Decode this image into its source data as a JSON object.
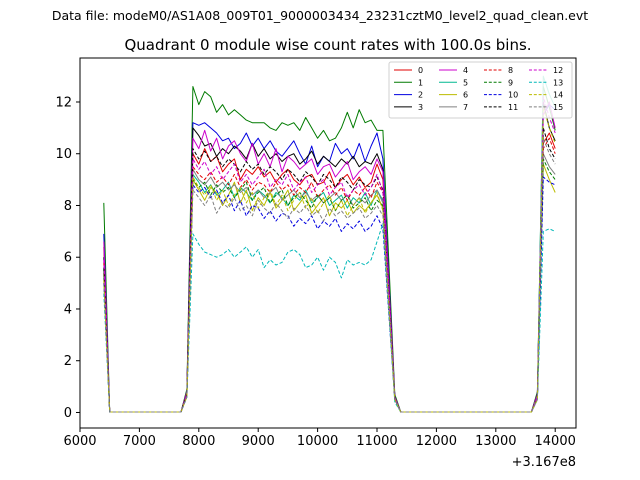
{
  "figure": {
    "suptitle": "Data file: modeM0/AS1A08_009T01_9000003434_23231cztM0_level2_quad_clean.evt"
  },
  "chart_data": {
    "type": "line",
    "title": "Quadrant 0 module wise count rates with 100.0s bins.",
    "xlabel": "",
    "ylabel": "",
    "x_offset_label": "+3.167e8",
    "xlim": [
      6000,
      14350
    ],
    "ylim": [
      -0.6,
      13.7
    ],
    "xticks": [
      6000,
      7000,
      8000,
      9000,
      10000,
      11000,
      12000,
      13000,
      14000
    ],
    "yticks": [
      0,
      2,
      4,
      6,
      8,
      10,
      12
    ],
    "grid": false,
    "legend_position": "top-right",
    "legend_columns": 4,
    "gaps": [
      {
        "x": [
          6500,
          6600,
          6700,
          6800,
          6900,
          7000,
          7100,
          7200,
          7300,
          7400,
          7500,
          7600,
          7700
        ],
        "value": 0.02
      },
      {
        "x": [
          11400,
          11500,
          11600,
          11700,
          11800,
          11900,
          12000,
          12100,
          12200,
          12300,
          12400,
          12500,
          12600,
          12700,
          12800,
          12900,
          13000,
          13100,
          13200,
          13300,
          13400,
          13500,
          13600
        ],
        "value": 0.02
      }
    ],
    "active_x": [
      7900,
      8000,
      8100,
      8200,
      8300,
      8400,
      8500,
      8600,
      8700,
      8800,
      8900,
      9000,
      9100,
      9200,
      9300,
      9400,
      9500,
      9600,
      9700,
      9800,
      9900,
      10000,
      10100,
      10200,
      10300,
      10400,
      10500,
      10600,
      10700,
      10800,
      10900,
      11000,
      11100
    ],
    "end_x": [
      13800,
      13900,
      14000
    ],
    "series": [
      {
        "name": "0",
        "color": "#e00000",
        "dash": false,
        "start": 6.4,
        "ramp_in": 0.8,
        "drop": 0.6,
        "ramp_out": 0.7,
        "active": [
          10.0,
          9.6,
          10.2,
          9.7,
          9.9,
          9.3,
          9.6,
          9.8,
          9.0,
          9.4,
          9.2,
          9.5,
          9.1,
          9.3,
          8.9,
          9.2,
          9.4,
          9.0,
          8.8,
          9.1,
          9.2,
          8.8,
          8.9,
          9.3,
          8.7,
          9.0,
          9.2,
          8.8,
          9.1,
          8.7,
          8.9,
          9.6,
          9.0
        ],
        "end": [
          10.4,
          10.8,
          10.2
        ]
      },
      {
        "name": "1",
        "color": "#007a00",
        "dash": false,
        "start": 8.1,
        "ramp_in": 0.9,
        "drop": 0.7,
        "ramp_out": 0.8,
        "active": [
          12.6,
          11.9,
          12.4,
          12.2,
          11.6,
          11.9,
          11.5,
          11.7,
          11.5,
          11.3,
          11.2,
          11.2,
          11.2,
          11.0,
          10.9,
          11.2,
          11.1,
          11.2,
          10.9,
          11.4,
          11.0,
          10.6,
          10.9,
          10.5,
          10.6,
          11.0,
          11.6,
          11.0,
          11.7,
          11.2,
          11.3,
          10.9,
          10.9
        ],
        "end": [
          12.6,
          11.8,
          10.9
        ]
      },
      {
        "name": "2",
        "color": "#0000e0",
        "dash": false,
        "start": 6.9,
        "ramp_in": 0.8,
        "drop": 0.6,
        "ramp_out": 0.7,
        "active": [
          11.2,
          11.1,
          11.2,
          11.0,
          10.8,
          10.5,
          10.6,
          10.2,
          10.4,
          10.8,
          10.3,
          10.6,
          10.2,
          10.5,
          10.1,
          9.9,
          10.2,
          10.5,
          10.0,
          9.6,
          10.3,
          9.5,
          9.9,
          9.7,
          10.4,
          10.0,
          10.2,
          9.8,
          10.4,
          9.7,
          10.3,
          10.8,
          9.8
        ],
        "end": [
          11.5,
          11.9,
          11.7
        ]
      },
      {
        "name": "3",
        "color": "#000000",
        "dash": false,
        "start": 6.0,
        "ramp_in": 0.8,
        "drop": 0.6,
        "ramp_out": 0.7,
        "active": [
          11.0,
          10.7,
          10.3,
          10.4,
          9.9,
          10.2,
          10.0,
          10.3,
          10.1,
          9.8,
          10.4,
          9.9,
          10.2,
          9.8,
          10.0,
          9.7,
          9.9,
          10.0,
          9.6,
          9.8,
          10.1,
          9.6,
          9.9,
          9.7,
          9.5,
          9.8,
          9.6,
          9.9,
          9.5,
          9.7,
          9.6,
          10.0,
          9.4
        ],
        "end": [
          12.0,
          11.0,
          10.5
        ]
      },
      {
        "name": "4",
        "color": "#cc00cc",
        "dash": false,
        "start": 6.6,
        "ramp_in": 0.8,
        "drop": 0.6,
        "ramp_out": 0.7,
        "active": [
          10.6,
          10.2,
          10.9,
          10.1,
          10.6,
          9.8,
          10.3,
          10.5,
          10.0,
          9.7,
          10.4,
          9.6,
          10.0,
          9.5,
          10.2,
          9.3,
          9.9,
          9.7,
          9.4,
          9.6,
          9.8,
          9.2,
          9.5,
          9.6,
          9.1,
          9.4,
          9.7,
          9.0,
          9.3,
          9.5,
          9.2,
          9.8,
          9.3
        ],
        "end": [
          11.5,
          12.0,
          11.0
        ]
      },
      {
        "name": "5",
        "color": "#00b890",
        "dash": false,
        "start": 5.6,
        "ramp_in": 0.7,
        "drop": 0.5,
        "ramp_out": 0.6,
        "active": [
          9.2,
          8.9,
          8.5,
          8.8,
          8.4,
          8.6,
          8.9,
          8.3,
          8.7,
          8.5,
          8.2,
          8.6,
          8.4,
          8.1,
          8.5,
          8.3,
          8.0,
          8.4,
          8.2,
          8.6,
          8.1,
          8.3,
          8.5,
          8.0,
          8.2,
          8.4,
          7.9,
          8.3,
          8.1,
          8.5,
          8.0,
          8.6,
          8.2
        ],
        "end": [
          13.0,
          12.3,
          11.8
        ]
      },
      {
        "name": "6",
        "color": "#bcbc00",
        "dash": false,
        "start": 5.4,
        "ramp_in": 0.7,
        "drop": 0.5,
        "ramp_out": 0.6,
        "active": [
          9.0,
          8.6,
          8.2,
          8.7,
          8.5,
          8.0,
          8.4,
          8.9,
          8.1,
          8.6,
          7.8,
          8.3,
          8.0,
          8.5,
          7.9,
          8.2,
          8.6,
          7.8,
          8.1,
          8.4,
          7.7,
          8.0,
          8.3,
          7.6,
          8.1,
          7.9,
          8.2,
          7.7,
          8.0,
          7.8,
          8.1,
          8.4,
          7.9
        ],
        "end": [
          9.6,
          9.0,
          8.5
        ]
      },
      {
        "name": "7",
        "color": "#808080",
        "dash": false,
        "start": 5.2,
        "ramp_in": 0.7,
        "drop": 0.5,
        "ramp_out": 0.6,
        "active": [
          9.4,
          9.0,
          8.8,
          9.1,
          8.7,
          8.9,
          8.6,
          8.8,
          8.5,
          8.7,
          8.4,
          8.6,
          8.3,
          8.5,
          8.7,
          8.2,
          8.4,
          8.6,
          8.3,
          8.5,
          8.2,
          8.4,
          8.1,
          8.3,
          8.5,
          8.2,
          8.4,
          8.0,
          8.3,
          8.1,
          8.4,
          8.6,
          8.1
        ],
        "end": [
          10.0,
          9.5,
          9.2
        ]
      },
      {
        "name": "8",
        "color": "#e00000",
        "dash": true,
        "start": 5.8,
        "ramp_in": 0.7,
        "drop": 0.5,
        "ramp_out": 0.6,
        "active": [
          9.5,
          9.2,
          9.0,
          9.3,
          8.9,
          9.1,
          8.8,
          9.2,
          8.7,
          9.0,
          8.6,
          8.9,
          8.8,
          8.5,
          8.9,
          8.6,
          8.8,
          8.4,
          8.7,
          8.5,
          8.9,
          8.3,
          8.6,
          8.8,
          8.4,
          8.7,
          8.2,
          8.6,
          8.4,
          8.7,
          8.3,
          8.9,
          8.5
        ],
        "end": [
          10.2,
          10.6,
          10.0
        ]
      },
      {
        "name": "9",
        "color": "#007a00",
        "dash": true,
        "start": 5.5,
        "ramp_in": 0.7,
        "drop": 0.5,
        "ramp_out": 0.6,
        "active": [
          9.0,
          8.7,
          8.9,
          8.4,
          8.8,
          8.5,
          8.7,
          8.3,
          8.6,
          8.9,
          8.2,
          8.5,
          8.7,
          8.1,
          8.4,
          8.6,
          8.0,
          8.3,
          8.5,
          8.2,
          7.9,
          8.4,
          8.1,
          8.3,
          7.8,
          8.2,
          8.4,
          7.9,
          8.1,
          8.3,
          7.8,
          8.2,
          8.0
        ],
        "end": [
          9.8,
          9.3,
          9.0
        ]
      },
      {
        "name": "10",
        "color": "#0000e0",
        "dash": true,
        "start": 5.0,
        "ramp_in": 0.6,
        "drop": 0.5,
        "ramp_out": 0.5,
        "active": [
          8.8,
          8.5,
          8.7,
          8.3,
          8.6,
          8.1,
          8.4,
          7.8,
          8.2,
          7.6,
          8.0,
          7.9,
          7.5,
          7.8,
          7.4,
          7.7,
          7.6,
          7.2,
          7.5,
          7.3,
          7.6,
          7.1,
          7.4,
          7.2,
          7.5,
          7.0,
          7.3,
          7.1,
          7.4,
          7.0,
          7.2,
          7.6,
          7.1
        ],
        "end": [
          9.1,
          8.9,
          8.8
        ]
      },
      {
        "name": "11",
        "color": "#000000",
        "dash": true,
        "start": 5.6,
        "ramp_in": 0.7,
        "drop": 0.5,
        "ramp_out": 0.6,
        "active": [
          10.2,
          9.8,
          10.1,
          9.7,
          9.9,
          9.5,
          9.8,
          9.6,
          9.3,
          9.7,
          9.4,
          9.6,
          9.2,
          9.5,
          9.3,
          9.0,
          9.4,
          9.2,
          8.9,
          9.3,
          9.1,
          8.8,
          9.2,
          9.0,
          8.7,
          9.1,
          8.9,
          8.6,
          9.0,
          8.8,
          8.7,
          9.1,
          8.6
        ],
        "end": [
          11.0,
          10.2,
          9.8
        ]
      },
      {
        "name": "12",
        "color": "#cc00cc",
        "dash": true,
        "start": 5.9,
        "ramp_in": 0.7,
        "drop": 0.5,
        "ramp_out": 0.6,
        "active": [
          9.8,
          9.4,
          9.7,
          9.2,
          9.5,
          9.0,
          9.3,
          9.6,
          8.9,
          9.2,
          8.8,
          9.1,
          9.4,
          8.7,
          9.0,
          8.8,
          9.2,
          8.6,
          8.9,
          9.1,
          8.5,
          8.8,
          9.0,
          8.4,
          8.7,
          8.9,
          8.3,
          8.6,
          8.8,
          8.4,
          8.7,
          9.2,
          8.5
        ],
        "end": [
          12.2,
          11.4,
          10.8
        ]
      },
      {
        "name": "13",
        "color": "#00b8b8",
        "dash": true,
        "start": 4.6,
        "ramp_in": 0.6,
        "drop": 0.4,
        "ramp_out": 0.5,
        "active": [
          6.9,
          6.5,
          6.2,
          6.1,
          6.0,
          6.1,
          6.3,
          6.0,
          6.2,
          6.4,
          6.0,
          6.3,
          5.6,
          5.9,
          5.7,
          5.8,
          6.2,
          6.3,
          6.1,
          5.6,
          5.7,
          6.0,
          5.5,
          6.0,
          5.8,
          5.2,
          5.9,
          5.7,
          5.8,
          5.7,
          5.9,
          6.6,
          7.3
        ],
        "end": [
          7.0,
          7.1,
          7.0
        ]
      },
      {
        "name": "14",
        "color": "#bcbc00",
        "dash": true,
        "start": 5.1,
        "ramp_in": 0.6,
        "drop": 0.5,
        "ramp_out": 0.5,
        "active": [
          9.1,
          8.7,
          8.4,
          8.8,
          8.2,
          8.6,
          8.0,
          8.4,
          8.7,
          8.1,
          8.5,
          7.9,
          8.3,
          8.6,
          8.0,
          8.4,
          7.8,
          8.2,
          8.5,
          7.9,
          8.3,
          7.7,
          8.1,
          8.4,
          7.8,
          8.2,
          7.6,
          8.0,
          8.3,
          7.7,
          8.1,
          8.5,
          7.8
        ],
        "end": [
          11.8,
          11.0,
          10.4
        ]
      },
      {
        "name": "15",
        "color": "#808080",
        "dash": true,
        "start": 5.0,
        "ramp_in": 0.6,
        "drop": 0.5,
        "ramp_out": 0.5,
        "active": [
          8.6,
          8.3,
          8.0,
          8.4,
          7.7,
          8.1,
          7.9,
          8.3,
          7.8,
          8.0,
          7.6,
          8.2,
          7.9,
          7.7,
          8.1,
          7.8,
          7.5,
          7.9,
          7.7,
          8.0,
          7.6,
          7.8,
          7.4,
          7.9,
          7.6,
          7.8,
          7.5,
          7.7,
          7.9,
          7.5,
          7.7,
          8.0,
          7.6
        ],
        "end": [
          10.6,
          10.0,
          9.6
        ]
      }
    ]
  }
}
